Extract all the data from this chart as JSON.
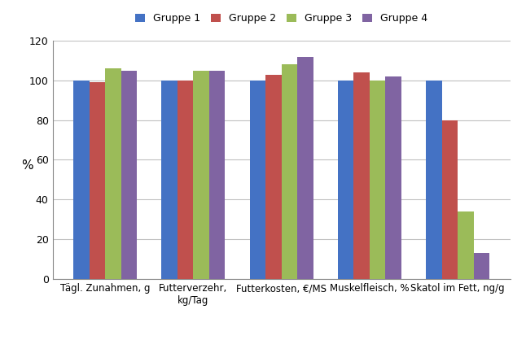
{
  "categories": [
    "Tägl. Zunahmen, g",
    "Futterverzehr,\nkg/Tag",
    "Futterkosten, €/MS",
    "Muskelfleisch, %",
    "Skatol im Fett, ng/g"
  ],
  "groups": [
    "Gruppe 1",
    "Gruppe 2",
    "Gruppe 3",
    "Gruppe 4"
  ],
  "values": [
    [
      100,
      99,
      106,
      105
    ],
    [
      100,
      100,
      105,
      105
    ],
    [
      100,
      103,
      108,
      112
    ],
    [
      100,
      104,
      100,
      102
    ],
    [
      100,
      80,
      34,
      13
    ]
  ],
  "colors": [
    "#4472C4",
    "#C0504D",
    "#9BBB59",
    "#8064A2"
  ],
  "ylabel": "%",
  "ylim": [
    0,
    120
  ],
  "yticks": [
    0,
    20,
    40,
    60,
    80,
    100,
    120
  ],
  "background_color": "#FFFFFF",
  "grid_color": "#FFFFFF",
  "plot_bg_color": "#FFFFFF"
}
